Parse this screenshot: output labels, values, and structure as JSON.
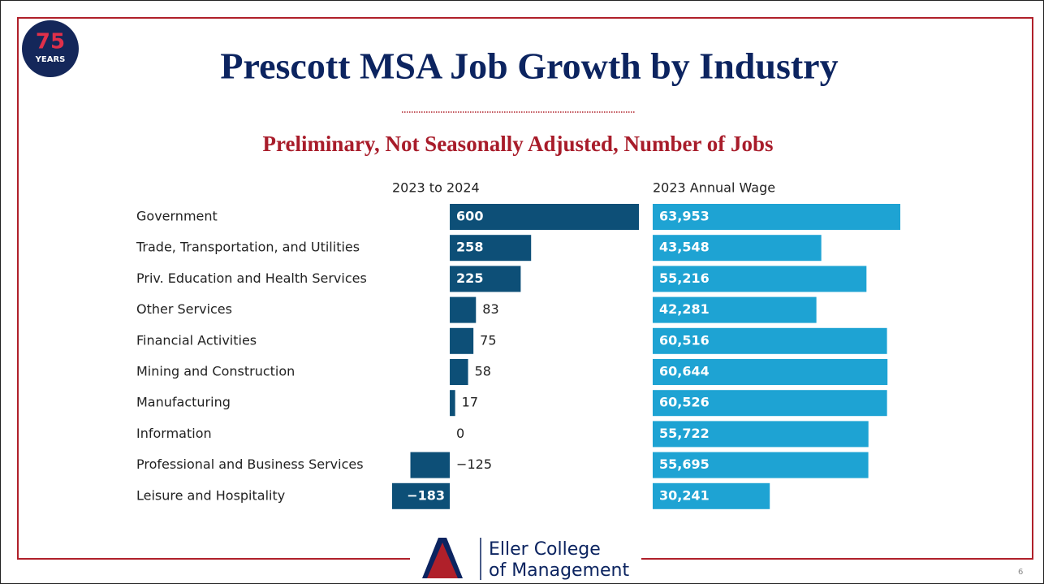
{
  "chart_data": {
    "type": "bar",
    "title": "Prescott MSA Job Growth by Industry",
    "subtitle": "Preliminary, Not Seasonally Adjusted, Number of Jobs",
    "categories": [
      "Government",
      "Trade, Transportation, and Utilities",
      "Priv. Education and Health Services",
      "Other Services",
      "Financial Activities",
      "Mining and Construction",
      "Manufacturing",
      "Information",
      "Professional and Business Services",
      "Leisure and Hospitality"
    ],
    "series": [
      {
        "name": "2023 to 2024",
        "color": "#0d4f77",
        "values": [
          600,
          258,
          225,
          83,
          75,
          58,
          17,
          0,
          -125,
          -183
        ],
        "value_labels": [
          "600",
          "258",
          "225",
          "83",
          "75",
          "58",
          "17",
          "0",
          "−125",
          "−183"
        ]
      },
      {
        "name": "2023 Annual Wage",
        "color": "#1ea3d3",
        "values": [
          63953,
          43548,
          55216,
          42281,
          60516,
          60644,
          60526,
          55722,
          55695,
          30241
        ],
        "value_labels": [
          "63,953",
          "43,548",
          "55,216",
          "42,281",
          "60,516",
          "60,644",
          "60,526",
          "55,722",
          "55,695",
          "30,241"
        ]
      }
    ]
  },
  "logo": {
    "number": "75",
    "label": "YEARS"
  },
  "footer": {
    "line1": "Eller College",
    "line2": "of Management",
    "page": "6"
  }
}
